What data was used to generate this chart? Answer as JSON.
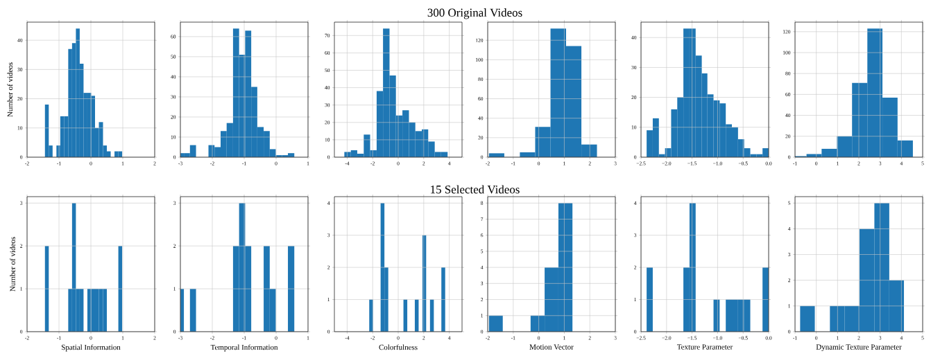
{
  "chart_data": [
    {
      "type": "histogram",
      "ylabel": "Number of videos",
      "bins": [
        -1.44,
        -1.32,
        -1.2,
        -1.08,
        -0.96,
        -0.84,
        -0.71,
        -0.59,
        -0.47,
        -0.35,
        -0.23,
        -0.11,
        0.01,
        0.13,
        0.25,
        0.38,
        0.5,
        0.62,
        0.74,
        0.86,
        0.98
      ],
      "values": [
        18,
        4,
        0,
        4,
        14,
        14,
        37,
        39,
        44,
        32,
        22,
        22,
        21,
        10,
        12,
        4,
        2,
        0,
        2,
        2
      ],
      "color": "#1f77b4",
      "xlim": [
        -2,
        2
      ],
      "ylim": [
        0,
        46.2
      ],
      "xticks": [
        -2,
        -1,
        0,
        1,
        2
      ],
      "yticks": [
        0,
        10,
        20,
        30,
        40
      ],
      "grid": true
    },
    {
      "type": "histogram",
      "bins": [
        -3.0,
        -2.89,
        -2.7,
        -2.51,
        -2.12,
        -1.93,
        -1.74,
        -1.55,
        -1.35,
        -1.16,
        -0.97,
        -0.78,
        -0.59,
        -0.39,
        -0.2,
        -0.01,
        0.18,
        0.37,
        0.57
      ],
      "values": [
        2,
        2,
        6,
        0,
        6,
        5,
        13,
        17,
        64,
        51,
        63,
        35,
        15,
        13,
        4,
        1,
        1,
        2
      ],
      "color": "#1f77b4",
      "xlim": [
        -3,
        1
      ],
      "ylim": [
        0,
        67.2
      ],
      "xticks": [
        -3,
        -2,
        -1,
        0,
        1
      ],
      "yticks": [
        0,
        10,
        20,
        30,
        40,
        50,
        60
      ],
      "grid": true
    },
    {
      "type": "histogram",
      "title": "300 Original Videos",
      "bins": [
        -4.22,
        -3.71,
        -3.21,
        -2.7,
        -2.2,
        -1.69,
        -1.19,
        -0.68,
        -0.18,
        0.33,
        0.84,
        1.34,
        1.85,
        2.35,
        2.86,
        3.36,
        3.87
      ],
      "values": [
        3,
        4,
        2,
        13,
        4,
        38,
        74,
        47,
        24,
        27,
        20,
        15,
        16,
        9,
        3,
        3
      ],
      "color": "#1f77b4",
      "xlim": [
        -5,
        5
      ],
      "ylim": [
        0,
        77.7
      ],
      "xticks": [
        -4,
        -2,
        0,
        2,
        4
      ],
      "yticks": [
        0,
        10,
        20,
        30,
        40,
        50,
        60,
        70
      ],
      "grid": true
    },
    {
      "type": "histogram",
      "bins": [
        -1.95,
        -1.35,
        -0.74,
        -0.14,
        0.46,
        1.07,
        1.67,
        2.28
      ],
      "values": [
        4,
        0,
        5,
        31,
        132,
        114,
        13
      ],
      "color": "#1f77b4",
      "xlim": [
        -2,
        3
      ],
      "ylim": [
        0,
        138.6
      ],
      "xticks": [
        -2,
        -1,
        0,
        1,
        2,
        3
      ],
      "yticks": [
        0,
        20,
        40,
        60,
        80,
        100,
        120
      ],
      "grid": true
    },
    {
      "type": "histogram",
      "bins": [
        -2.39,
        -2.27,
        -2.15,
        -2.03,
        -1.91,
        -1.79,
        -1.67,
        -1.55,
        -1.43,
        -1.31,
        -1.2,
        -1.08,
        -0.96,
        -0.84,
        -0.72,
        -0.6,
        -0.48,
        -0.36,
        -0.24,
        -0.12,
        0.0
      ],
      "values": [
        9,
        13,
        1,
        3,
        16,
        20,
        43,
        43,
        34,
        28,
        21,
        19,
        18,
        11,
        10,
        6,
        3,
        1,
        1,
        3
      ],
      "color": "#1f77b4",
      "xlim": [
        -2.5,
        0.0
      ],
      "ylim": [
        0,
        45.15
      ],
      "xticks": [
        {
          "value": -2.5,
          "label": "−2.5"
        },
        {
          "value": -2.0,
          "label": "−2.0"
        },
        {
          "value": -1.5,
          "label": "−1.5"
        },
        {
          "value": -1.0,
          "label": "−1.0"
        },
        {
          "value": -0.5,
          "label": "−0.5"
        },
        {
          "value": 0.0,
          "label": "0.0"
        }
      ],
      "yticks": [
        0,
        10,
        20,
        30,
        40
      ],
      "grid": true
    },
    {
      "type": "histogram",
      "bins": [
        -1.0,
        -0.46,
        0.25,
        0.97,
        1.68,
        2.4,
        3.11,
        3.82,
        4.54
      ],
      "values": [
        1,
        3,
        8,
        20,
        71,
        123,
        57,
        16
      ],
      "color": "#1f77b4",
      "xlim": [
        -1,
        5
      ],
      "ylim": [
        0,
        129.15
      ],
      "xticks": [
        -1,
        0,
        1,
        2,
        3,
        4,
        5
      ],
      "yticks": [
        0,
        20,
        40,
        60,
        80,
        100,
        120
      ],
      "grid": true
    },
    {
      "type": "histogram",
      "ylabel": "Number of videos",
      "xlabel": "Spatial Information",
      "bins": [
        -1.44,
        -1.32,
        -0.71,
        -0.59,
        -0.47,
        -0.35,
        -0.23,
        -0.11,
        0.01,
        0.13,
        0.25,
        0.38,
        0.5,
        0.86,
        0.98
      ],
      "values": [
        2,
        0,
        1,
        3,
        1,
        1,
        0,
        1,
        1,
        1,
        1,
        1,
        0,
        2
      ],
      "color": "#1f77b4",
      "xlim": [
        -2,
        2
      ],
      "ylim": [
        0,
        3.15
      ],
      "xticks": [
        -2,
        -1,
        0,
        1,
        2
      ],
      "yticks": [
        0,
        1,
        2,
        3
      ],
      "grid": true
    },
    {
      "type": "histogram",
      "xlabel": "Temporal Information",
      "bins": [
        -3.0,
        -2.89,
        -2.7,
        -2.51,
        -1.35,
        -1.16,
        -0.97,
        -0.78,
        -0.39,
        -0.2,
        -0.01,
        0.37,
        0.57
      ],
      "values": [
        1,
        0,
        1,
        0,
        2,
        3,
        2,
        0,
        2,
        1,
        0,
        2
      ],
      "color": "#1f77b4",
      "xlim": [
        -3,
        1
      ],
      "ylim": [
        0,
        3.15
      ],
      "xticks": [
        -3,
        -2,
        -1,
        0,
        1
      ],
      "yticks": [
        0,
        1,
        2,
        3
      ],
      "grid": true
    },
    {
      "type": "histogram",
      "title": "15 Selected Videos",
      "xlabel": "Colorfulness",
      "bins": [
        -2.27,
        -1.97,
        -1.38,
        -1.08,
        -0.78,
        0.41,
        0.71,
        1.3,
        1.6,
        1.9,
        2.19,
        2.49,
        2.79,
        3.38,
        3.68
      ],
      "values": [
        1,
        0,
        4,
        2,
        0,
        1,
        0,
        1,
        0,
        3,
        0,
        1,
        0,
        2
      ],
      "color": "#1f77b4",
      "xlim": [
        -5,
        5
      ],
      "ylim": [
        0,
        4.2
      ],
      "xticks": [
        -4,
        -2,
        0,
        2,
        4
      ],
      "yticks": [
        0,
        1,
        2,
        3,
        4
      ],
      "grid": true
    },
    {
      "type": "histogram",
      "xlabel": "Motion Vector",
      "bins": [
        -1.95,
        -1.41,
        -0.32,
        0.23,
        0.77,
        1.32
      ],
      "values": [
        1,
        0,
        1,
        4,
        8
      ],
      "color": "#1f77b4",
      "xlim": [
        -2,
        3
      ],
      "ylim": [
        0,
        8.4
      ],
      "xticks": [
        -2,
        -1,
        0,
        1,
        2,
        3
      ],
      "yticks": [
        0,
        1,
        2,
        3,
        4,
        5,
        6,
        7,
        8
      ],
      "grid": true
    },
    {
      "type": "histogram",
      "xlabel": "Texture Parameter",
      "bins": [
        -2.39,
        -2.27,
        -1.67,
        -1.55,
        -1.43,
        -1.08,
        -0.96,
        -0.84,
        -0.72,
        -0.6,
        -0.48,
        -0.36,
        -0.12,
        0.0
      ],
      "values": [
        2,
        0,
        2,
        4,
        0,
        1,
        0,
        1,
        1,
        1,
        1,
        0,
        2
      ],
      "color": "#1f77b4",
      "xlim": [
        -2.5,
        0.0
      ],
      "ylim": [
        0,
        4.2
      ],
      "xticks": [
        {
          "value": -2.5,
          "label": "−2.5"
        },
        {
          "value": -2.0,
          "label": "−2.0"
        },
        {
          "value": -1.5,
          "label": "−1.5"
        },
        {
          "value": -1.0,
          "label": "−1.0"
        },
        {
          "value": -0.5,
          "label": "−0.5"
        },
        {
          "value": 0.0,
          "label": "0.0"
        }
      ],
      "yticks": [
        0,
        1,
        2,
        3,
        4
      ],
      "grid": true
    },
    {
      "type": "histogram",
      "xlabel": "Dynamic Texture Parameter",
      "bins": [
        -0.76,
        -0.07,
        0.64,
        1.33,
        2.03,
        2.73,
        3.43,
        4.12
      ],
      "values": [
        1,
        0,
        1,
        1,
        4,
        5,
        2
      ],
      "color": "#1f77b4",
      "xlim": [
        -1,
        5
      ],
      "ylim": [
        0,
        5.25
      ],
      "xticks": [
        -1,
        0,
        1,
        2,
        3,
        4,
        5
      ],
      "yticks": [
        0,
        1,
        2,
        3,
        4,
        5
      ],
      "grid": true
    }
  ]
}
